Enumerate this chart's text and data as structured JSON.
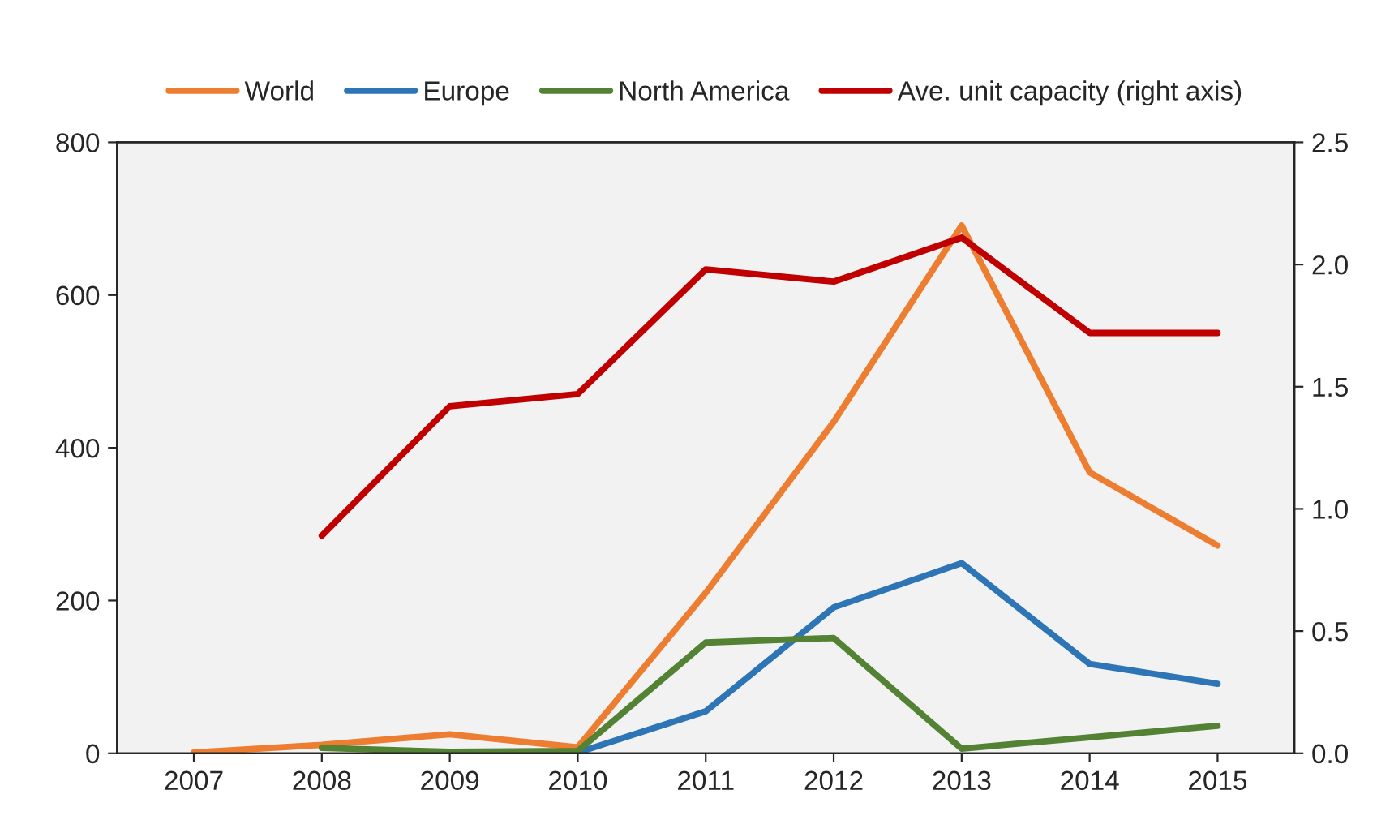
{
  "chart_data": {
    "type": "line",
    "categories": [
      "2007",
      "2008",
      "2009",
      "2010",
      "2011",
      "2012",
      "2013",
      "2014",
      "2015"
    ],
    "series": [
      {
        "name": "World",
        "color": "#ed7d31",
        "values": [
          1,
          11,
          25,
          8,
          210,
          434,
          691,
          368,
          272
        ]
      },
      {
        "name": "Europe",
        "color": "#2e75b6",
        "values": [
          null,
          null,
          0,
          1,
          55,
          191,
          249,
          117,
          91
        ]
      },
      {
        "name": "North America",
        "color": "#548235",
        "values": [
          null,
          7,
          2,
          3,
          145,
          151,
          6,
          21,
          36
        ]
      },
      {
        "name": "Ave. unit capacity (right axis)",
        "color": "#c00000",
        "axis": "y2",
        "values": [
          null,
          0.89,
          1.42,
          1.47,
          1.98,
          1.93,
          2.11,
          1.72,
          1.72
        ]
      }
    ],
    "ylim": [
      0,
      800
    ],
    "yticks": [
      0,
      200,
      400,
      600,
      800
    ],
    "y2lim": [
      0,
      2.5
    ],
    "y2ticks": [
      {
        "value": 0,
        "label": "0.0"
      },
      {
        "value": 0.5,
        "label": "0.5"
      },
      {
        "value": 1,
        "label": "1.0"
      },
      {
        "value": 1.5,
        "label": "1.5"
      },
      {
        "value": 2,
        "label": "2.0"
      },
      {
        "value": 2.5,
        "label": "2.5"
      }
    ],
    "legend": "top",
    "grid": false,
    "marker": "none",
    "line_style": "solid"
  }
}
